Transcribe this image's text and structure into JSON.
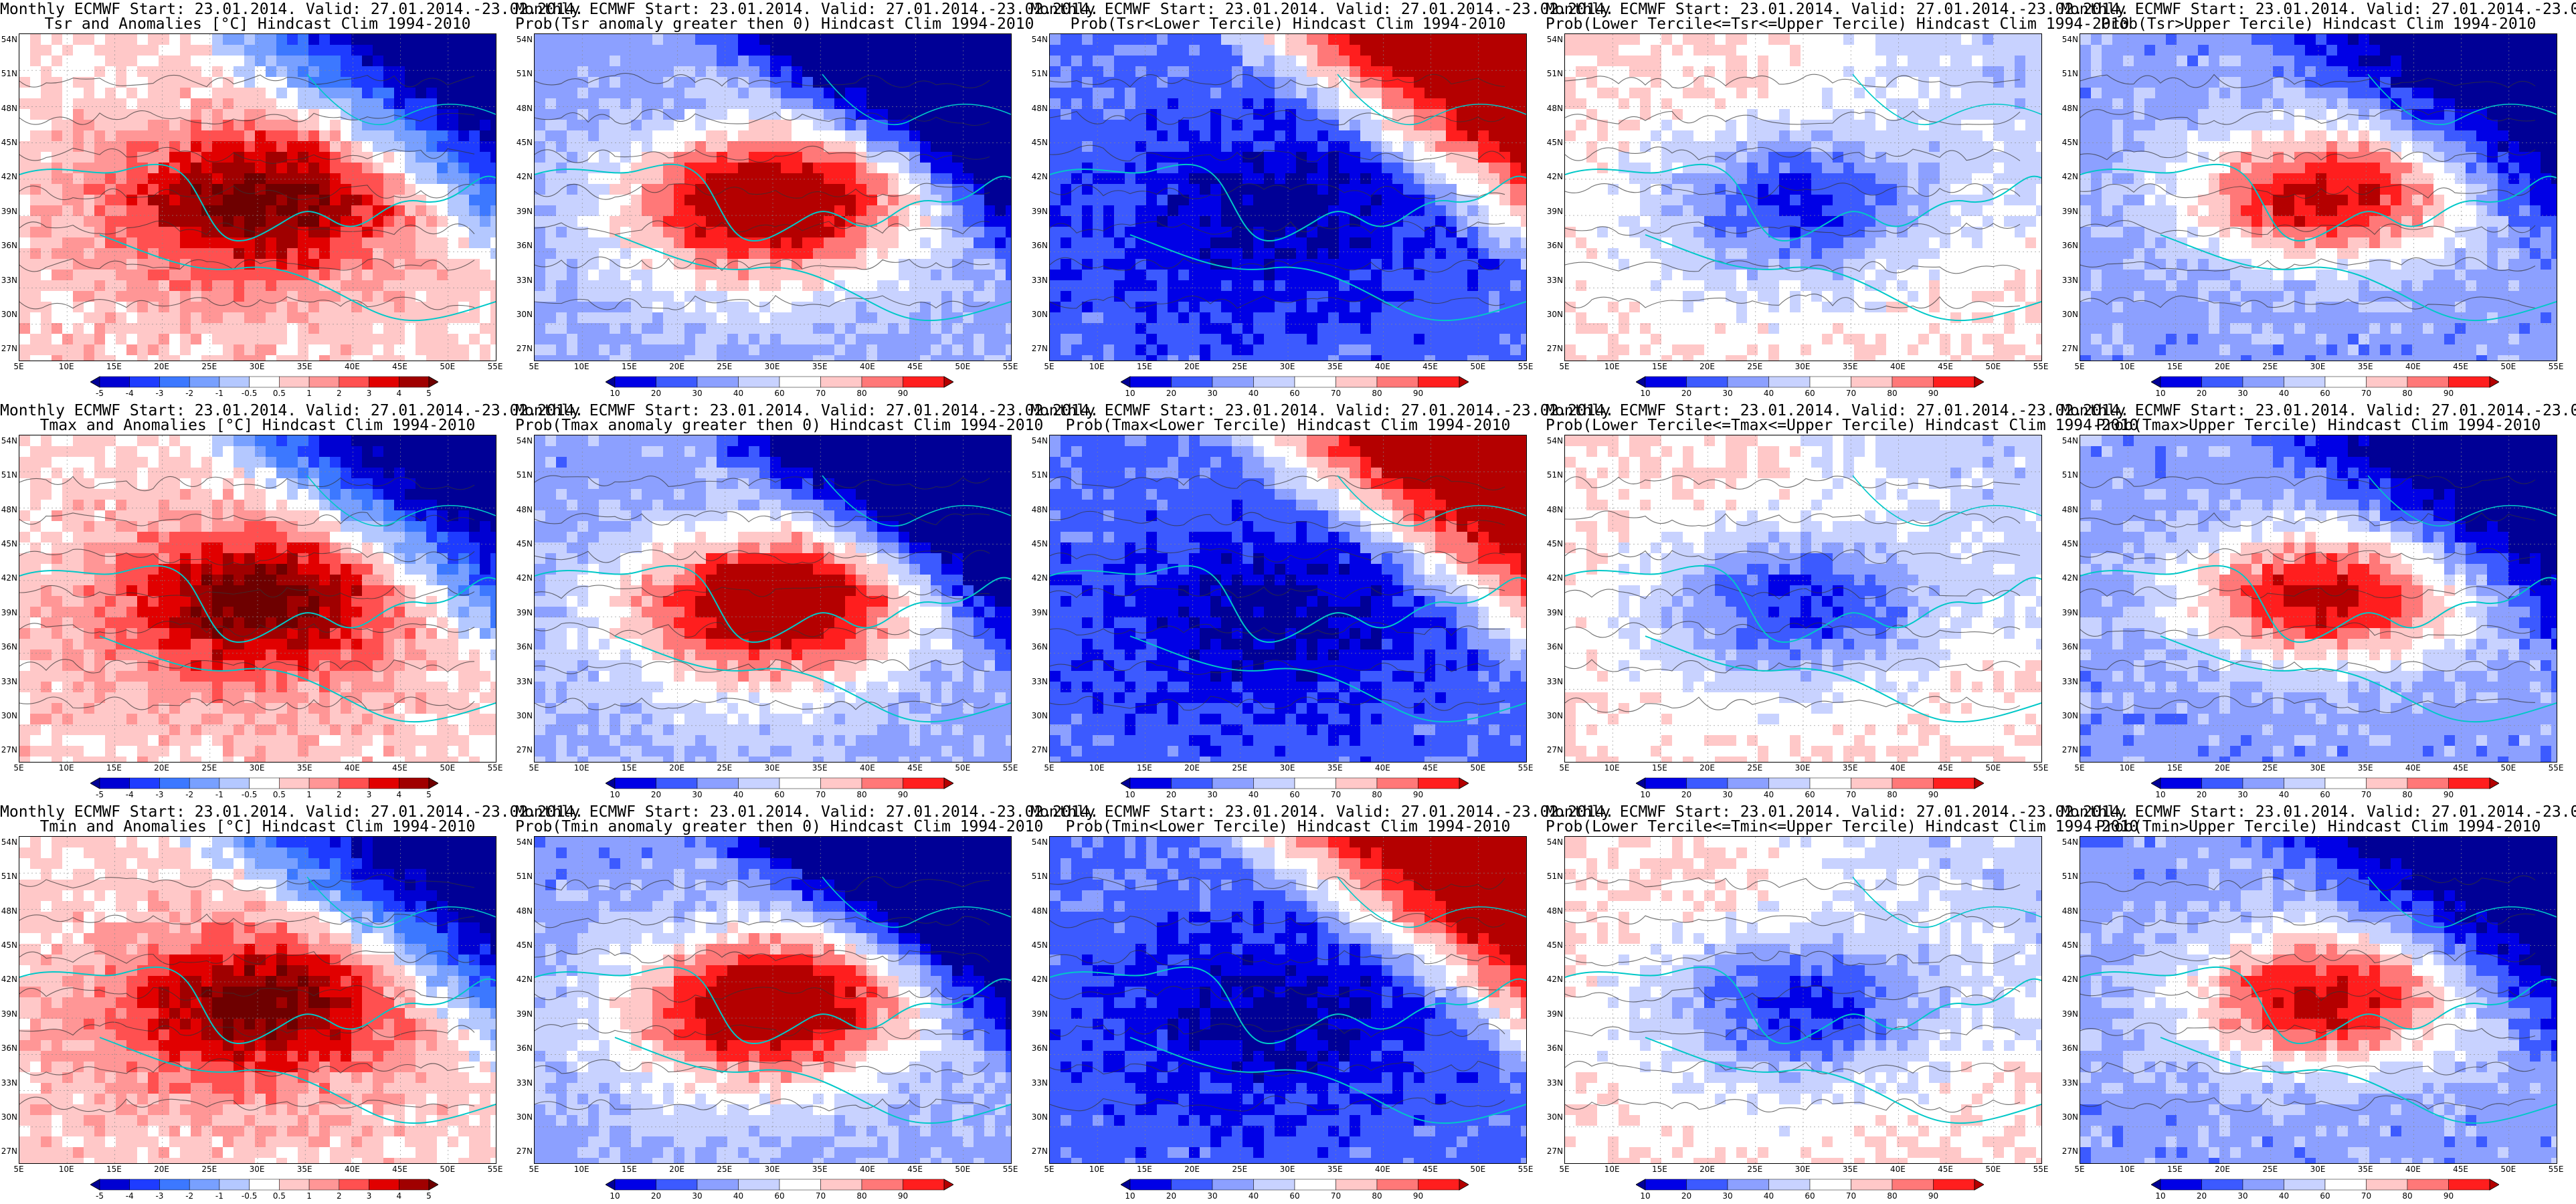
{
  "common": {
    "title_prefix": "Monthly ECMWF Start: 23.01.2014. Valid: 27.01.2014.-23.02.2014."
  },
  "axes": {
    "lat_labels": [
      "54N",
      "51N",
      "48N",
      "45N",
      "42N",
      "39N",
      "36N",
      "33N",
      "30N",
      "27N"
    ],
    "lon_labels": [
      "5E",
      "10E",
      "15E",
      "20E",
      "25E",
      "30E",
      "35E",
      "40E",
      "45E",
      "50E",
      "55E"
    ]
  },
  "colorbars": {
    "anomaly": {
      "labels": [
        "-5",
        "-4",
        "-3",
        "-2",
        "-1",
        "-0.5",
        "0.5",
        "1",
        "2",
        "3",
        "4",
        "5"
      ],
      "colors": [
        "#000096",
        "#0000d2",
        "#1e3cff",
        "#3c78ff",
        "#78a0ff",
        "#b4c8ff",
        "#ffffff",
        "#ffc8c8",
        "#ff9696",
        "#ff5050",
        "#e10000",
        "#a00000",
        "#6e0000"
      ]
    },
    "probability": {
      "labels": [
        "10",
        "20",
        "30",
        "40",
        "60",
        "70",
        "80",
        "90"
      ],
      "colors": [
        "#000096",
        "#0000e6",
        "#3c5aff",
        "#8ca0ff",
        "#c8d2ff",
        "#ffffff",
        "#ffc8c8",
        "#ff7878",
        "#ff1e1e",
        "#b40000"
      ]
    }
  },
  "panels": [
    {
      "title": "Tsr and Anomalies [°C] Hindcast Clim 1994-2010",
      "kind": "anomaly",
      "pattern": "anom",
      "seed": 3,
      "colorbar": "anomaly"
    },
    {
      "title": "Prob(Tsr anomaly greater then 0) Hindcast Clim 1994-2010",
      "kind": "prob",
      "pattern": "gt0",
      "seed": 11,
      "colorbar": "probability"
    },
    {
      "title": "Prob(Tsr<Lower Tercile) Hindcast Clim 1994-2010",
      "kind": "prob",
      "pattern": "lower",
      "seed": 17,
      "colorbar": "probability"
    },
    {
      "title": "Prob(Lower Tercile<=Tsr<=Upper Tercile) Hindcast Clim 1994-2010",
      "kind": "prob",
      "pattern": "middle",
      "seed": 23,
      "colorbar": "probability"
    },
    {
      "title": "Prob(Tsr>Upper Tercile) Hindcast Clim 1994-2010",
      "kind": "prob",
      "pattern": "upper",
      "seed": 29,
      "colorbar": "probability"
    },
    {
      "title": "Tmax and Anomalies [°C] Hindcast Clim 1994-2010",
      "kind": "anomaly",
      "pattern": "anom",
      "seed": 31,
      "colorbar": "anomaly"
    },
    {
      "title": "Prob(Tmax anomaly greater then 0) Hindcast Clim 1994-2010",
      "kind": "prob",
      "pattern": "gt0",
      "seed": 37,
      "colorbar": "probability"
    },
    {
      "title": "Prob(Tmax<Lower Tercile) Hindcast Clim 1994-2010",
      "kind": "prob",
      "pattern": "lower",
      "seed": 41,
      "colorbar": "probability"
    },
    {
      "title": "Prob(Lower Tercile<=Tmax<=Upper Tercile) Hindcast Clim 1994-2010",
      "kind": "prob",
      "pattern": "middle",
      "seed": 43,
      "colorbar": "probability"
    },
    {
      "title": "Prob(Tmax>Upper Tercile) Hindcast Clim 1994-2010",
      "kind": "prob",
      "pattern": "upper",
      "seed": 47,
      "colorbar": "probability"
    },
    {
      "title": "Tmin and Anomalies [°C] Hindcast Clim 1994-2010",
      "kind": "anomaly",
      "pattern": "anom",
      "seed": 53,
      "colorbar": "anomaly"
    },
    {
      "title": "Prob(Tmin anomaly greater then 0) Hindcast Clim 1994-2010",
      "kind": "prob",
      "pattern": "gt0",
      "seed": 59,
      "colorbar": "probability"
    },
    {
      "title": "Prob(Tmin<Lower Tercile) Hindcast Clim 1994-2010",
      "kind": "prob",
      "pattern": "lower",
      "seed": 61,
      "colorbar": "probability"
    },
    {
      "title": "Prob(Lower Tercile<=Tmin<=Upper Tercile) Hindcast Clim 1994-2010",
      "kind": "prob",
      "pattern": "middle",
      "seed": 67,
      "colorbar": "probability"
    },
    {
      "title": "Prob(Tmin>Upper Tercile) Hindcast Clim 1994-2010",
      "kind": "prob",
      "pattern": "upper",
      "seed": 71,
      "colorbar": "probability"
    }
  ]
}
